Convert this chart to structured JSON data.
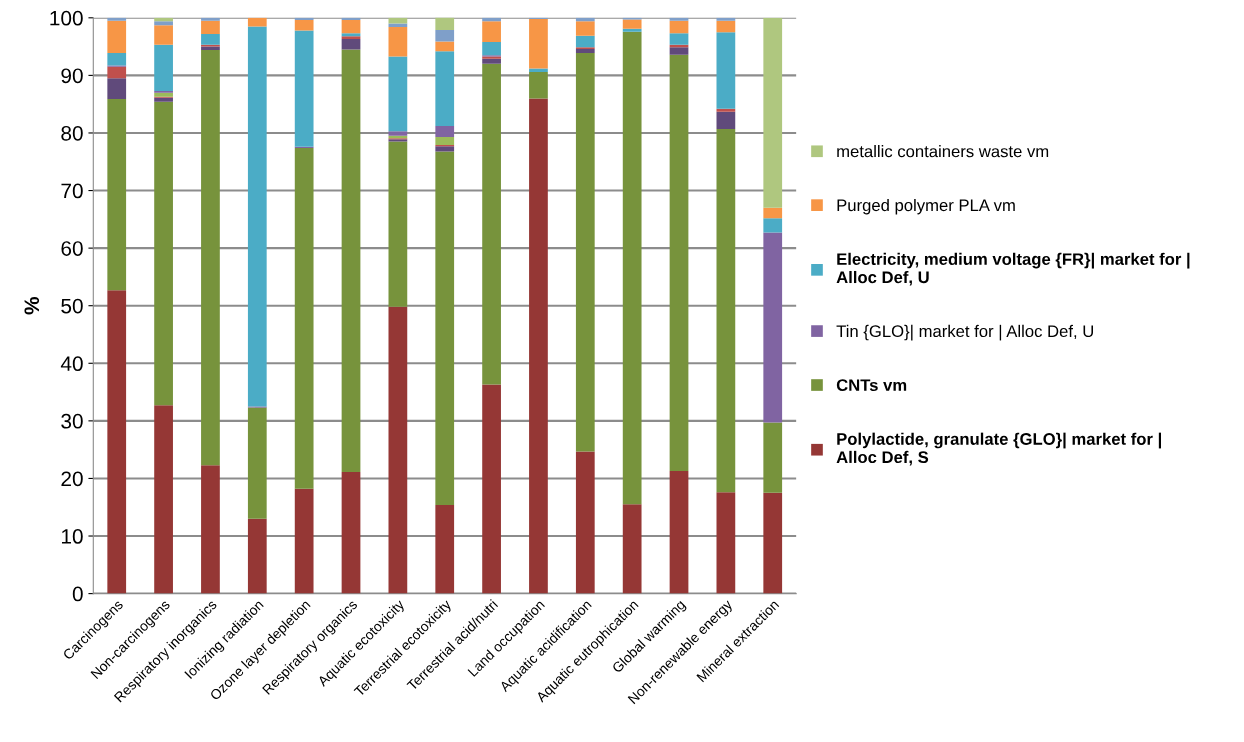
{
  "chart_data": {
    "type": "bar",
    "stacked": true,
    "ylabel": "%",
    "categories": [
      "Carcinogens",
      "Non-carcinogens",
      "Respiratory inorganics",
      "Ionizing radiation",
      "Ozone layer depletion",
      "Respiratory organics",
      "Aquatic ecotoxicity",
      "Terrestrial ecotoxicity",
      "Terrestrial acid/nutri",
      "Land occupation",
      "Aquatic acidification",
      "Aquatic eutrophication",
      "Global warming",
      "Non-renewable energy",
      "Mineral extraction"
    ],
    "series": [
      {
        "name": "Polylactide, granulate {GLO}| market for |\nAlloc Def, S",
        "color": "#953735",
        "values": [
          52.7,
          32.7,
          22.3,
          13.0,
          18.2,
          21.1,
          49.8,
          15.4,
          36.3,
          86.0,
          24.7,
          15.5,
          21.3,
          17.6,
          17.5
        ]
      },
      {
        "name": "CNTs vm",
        "color": "#77933c",
        "values": [
          33.2,
          52.7,
          72.1,
          19.3,
          59.2,
          73.4,
          28.7,
          61.4,
          55.7,
          4.6,
          69.2,
          82.1,
          72.3,
          63.1,
          12.2
        ]
      },
      {
        "color": "#604a7b",
        "values": [
          3.6,
          0.7,
          0.6,
          0,
          0,
          1.8,
          0.4,
          0.9,
          0.9,
          0,
          0.7,
          0,
          1.3,
          3.0,
          0
        ]
      },
      {
        "color": "#c0504d",
        "values": [
          2.0,
          0.2,
          0.3,
          0,
          0,
          0.5,
          0.2,
          0.2,
          0.4,
          0,
          0.3,
          0,
          0.4,
          0.5,
          0
        ]
      },
      {
        "color": "#9bbb59",
        "values": [
          0,
          0.7,
          0,
          0,
          0,
          0,
          0.4,
          1.4,
          0,
          0,
          0,
          0,
          0,
          0,
          0
        ]
      },
      {
        "name": "Tin {GLO}| market for | Alloc Def, U",
        "color": "#8064a2",
        "values": [
          0.2,
          0.3,
          0,
          0.2,
          0.2,
          0,
          0.8,
          1.9,
          0.2,
          0,
          0,
          0,
          0,
          0,
          33.0
        ]
      },
      {
        "name": "Electricity, medium voltage {FR}| market for |\nAlloc Def, U",
        "color": "#4bacc6",
        "values": [
          2.2,
          8.0,
          1.9,
          66.0,
          20.2,
          0.5,
          13.0,
          13.0,
          2.3,
          0.6,
          2.0,
          0.5,
          2.0,
          13.3,
          2.5
        ]
      },
      {
        "name": "Purged polymer PLA vm",
        "color": "#f79646",
        "values": [
          5.6,
          3.4,
          2.3,
          1.5,
          1.8,
          2.3,
          5.1,
          1.7,
          3.6,
          8.6,
          2.5,
          1.6,
          2.2,
          2.0,
          1.8
        ]
      },
      {
        "color": "#7f9fc9",
        "values": [
          0.5,
          0.7,
          0.5,
          0,
          0.4,
          0.4,
          0.6,
          2.0,
          0.6,
          0.2,
          0.6,
          0.3,
          0.5,
          0.5,
          0
        ]
      },
      {
        "name": "metallic containers waste vm",
        "color": "#afc77f",
        "values": [
          0,
          0.6,
          0,
          0,
          0,
          0,
          1.0,
          2.2,
          0,
          0,
          0,
          0,
          0,
          0,
          33.0
        ]
      }
    ],
    "ylim": [
      0,
      100
    ],
    "yticks": [
      0,
      10,
      20,
      30,
      40,
      50,
      60,
      70,
      80,
      90,
      100
    ],
    "grid": "y",
    "legend": "right"
  }
}
